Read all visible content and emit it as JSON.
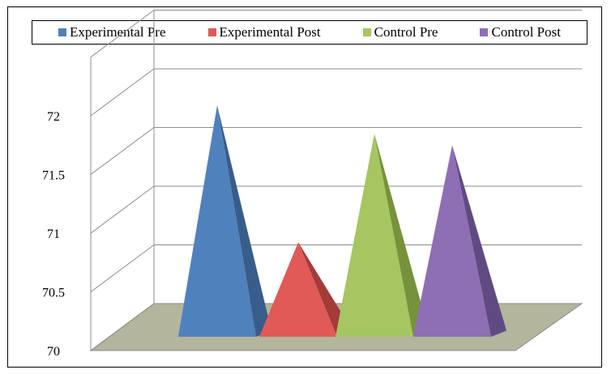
{
  "chart_data": {
    "type": "bar",
    "style": "3d-pyramid",
    "title": "",
    "xlabel": "",
    "ylabel": "",
    "ylim": [
      70,
      72
    ],
    "yticks": [
      {
        "value": 70,
        "label": "70"
      },
      {
        "value": 70.5,
        "label": "70.5"
      },
      {
        "value": 71,
        "label": "71"
      },
      {
        "value": 71.5,
        "label": "71.5"
      },
      {
        "value": 72,
        "label": "72"
      }
    ],
    "grid": true,
    "legend": "top",
    "series": [
      {
        "name": "Experimental Pre",
        "values": [
          72.0
        ],
        "color": "#4f81bd",
        "shade": "#385d8a"
      },
      {
        "name": "Experimental Post",
        "values": [
          70.8
        ],
        "color": "#e05a57",
        "shade": "#a33b39"
      },
      {
        "name": "Control Pre",
        "values": [
          71.75
        ],
        "color": "#a5c660",
        "shade": "#76923c"
      },
      {
        "name": "Control Post",
        "values": [
          71.65
        ],
        "color": "#8e6eb5",
        "shade": "#5f4a82"
      }
    ]
  }
}
